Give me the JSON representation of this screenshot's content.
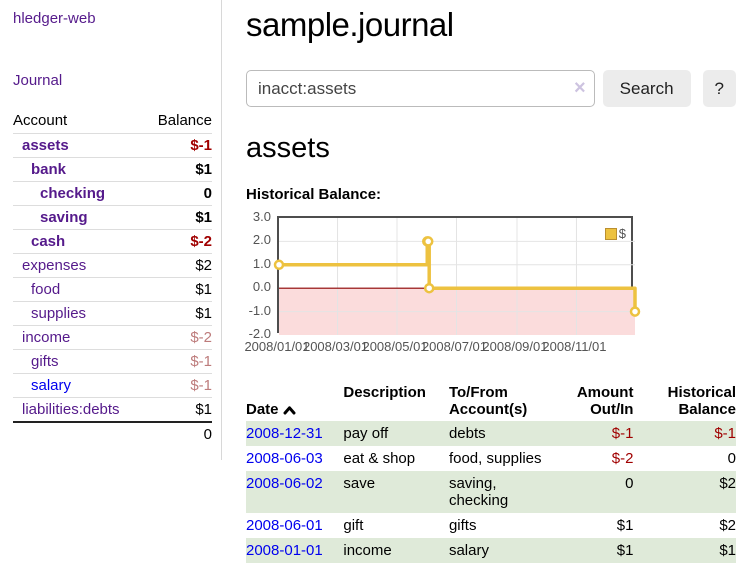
{
  "app": {
    "title": "hledger-web",
    "nav_journal": "Journal"
  },
  "colors": {
    "link_visited": "#551a8b",
    "link_new": "#0000ee",
    "negative": "#a00000",
    "negative_muted": "#bd7b7b",
    "row_shaded": "#dfead9"
  },
  "sidebar": {
    "header": {
      "account": "Account",
      "balance": "Balance"
    },
    "accounts": [
      {
        "label": "assets",
        "level": 1,
        "bold": true,
        "link": "visited",
        "balance": "$-1",
        "tone": "negative"
      },
      {
        "label": "bank",
        "level": 2,
        "bold": true,
        "link": "visited",
        "balance": "$1",
        "tone": "normal"
      },
      {
        "label": "checking",
        "level": 3,
        "bold": true,
        "link": "visited",
        "balance": "0",
        "tone": "normal"
      },
      {
        "label": "saving",
        "level": 3,
        "bold": true,
        "link": "visited",
        "balance": "$1",
        "tone": "normal"
      },
      {
        "label": "cash",
        "level": 2,
        "bold": true,
        "link": "visited",
        "balance": "$-2",
        "tone": "negative"
      },
      {
        "label": "expenses",
        "level": 1,
        "bold": false,
        "link": "visited",
        "balance": "$2",
        "tone": "normal"
      },
      {
        "label": "food",
        "level": 2,
        "bold": false,
        "link": "visited",
        "balance": "$1",
        "tone": "normal"
      },
      {
        "label": "supplies",
        "level": 2,
        "bold": false,
        "link": "visited",
        "balance": "$1",
        "tone": "normal"
      },
      {
        "label": "income",
        "level": 1,
        "bold": false,
        "link": "visited",
        "balance": "$-2",
        "tone": "negative-muted"
      },
      {
        "label": "gifts",
        "level": 2,
        "bold": false,
        "link": "visited",
        "balance": "$-1",
        "tone": "negative-muted"
      },
      {
        "label": "salary",
        "level": 2,
        "bold": false,
        "link": "new",
        "balance": "$-1",
        "tone": "negative-muted"
      },
      {
        "label": "liabilities:debts",
        "level": 1,
        "bold": false,
        "link": "visited",
        "balance": "$1",
        "tone": "normal"
      }
    ],
    "total": "0"
  },
  "main": {
    "title": "sample.journal",
    "search": {
      "value": "inacct:assets",
      "clear_icon": "×",
      "button": "Search",
      "help_button": "?"
    },
    "account_heading": "assets",
    "chart_heading": "Historical Balance:"
  },
  "chart_data": {
    "type": "line",
    "title": "Historical Balance:",
    "series": [
      {
        "name": "$",
        "color": "#edc240",
        "step": true,
        "points": [
          [
            "2008-01-01",
            1
          ],
          [
            "2008-06-01",
            2
          ],
          [
            "2008-06-02",
            2
          ],
          [
            "2008-06-03",
            0
          ],
          [
            "2008-12-31",
            -1
          ]
        ]
      }
    ],
    "xlim": [
      "2008-01-01",
      "2008-12-31"
    ],
    "ylim": [
      -2,
      3
    ],
    "x_ticks": [
      {
        "date": "2008-01-01",
        "label": "2008/01/01"
      },
      {
        "date": "2008-03-01",
        "label": "2008/03/01"
      },
      {
        "date": "2008-05-01",
        "label": "2008/05/01"
      },
      {
        "date": "2008-07-01",
        "label": "2008/07/01"
      },
      {
        "date": "2008-09-01",
        "label": "2008/09/01"
      },
      {
        "date": "2008-11-01",
        "label": "2008/11/01"
      }
    ],
    "y_ticks": [
      {
        "value": 3,
        "label": "3.0"
      },
      {
        "value": 2,
        "label": "2.0"
      },
      {
        "value": 1,
        "label": "1.0"
      },
      {
        "value": 0,
        "label": "0.0"
      },
      {
        "value": -1,
        "label": "-1.0"
      },
      {
        "value": -2,
        "label": "-2.0"
      }
    ],
    "grid": true,
    "grid_color": "#e4e4e4",
    "zero_line_color": "#8b0000",
    "below_zero_fill": "#fbdcdc",
    "legend_position": "top-right",
    "legend": [
      "$"
    ]
  },
  "transactions": {
    "headers": {
      "date": "Date",
      "description": "Description",
      "accounts": "To/From\nAccount(s)",
      "amount": "Amount\nOut/In",
      "balance": "Historical\nBalance"
    },
    "rows": [
      {
        "date": "2008-12-31",
        "description": "pay off",
        "accounts": "debts",
        "amount": "$-1",
        "amount_tone": "negative",
        "balance": "$-1",
        "balance_tone": "negative",
        "shaded": true
      },
      {
        "date": "2008-06-03",
        "description": "eat & shop",
        "accounts": "food, supplies",
        "amount": "$-2",
        "amount_tone": "negative",
        "balance": "0",
        "balance_tone": "normal",
        "shaded": false
      },
      {
        "date": "2008-06-02",
        "description": "save",
        "accounts": "saving, checking",
        "amount": "0",
        "amount_tone": "normal",
        "balance": "$2",
        "balance_tone": "normal",
        "shaded": true
      },
      {
        "date": "2008-06-01",
        "description": "gift",
        "accounts": "gifts",
        "amount": "$1",
        "amount_tone": "normal",
        "balance": "$2",
        "balance_tone": "normal",
        "shaded": false
      },
      {
        "date": "2008-01-01",
        "description": "income",
        "accounts": "salary",
        "amount": "$1",
        "amount_tone": "normal",
        "balance": "$1",
        "balance_tone": "normal",
        "shaded": true
      }
    ]
  }
}
